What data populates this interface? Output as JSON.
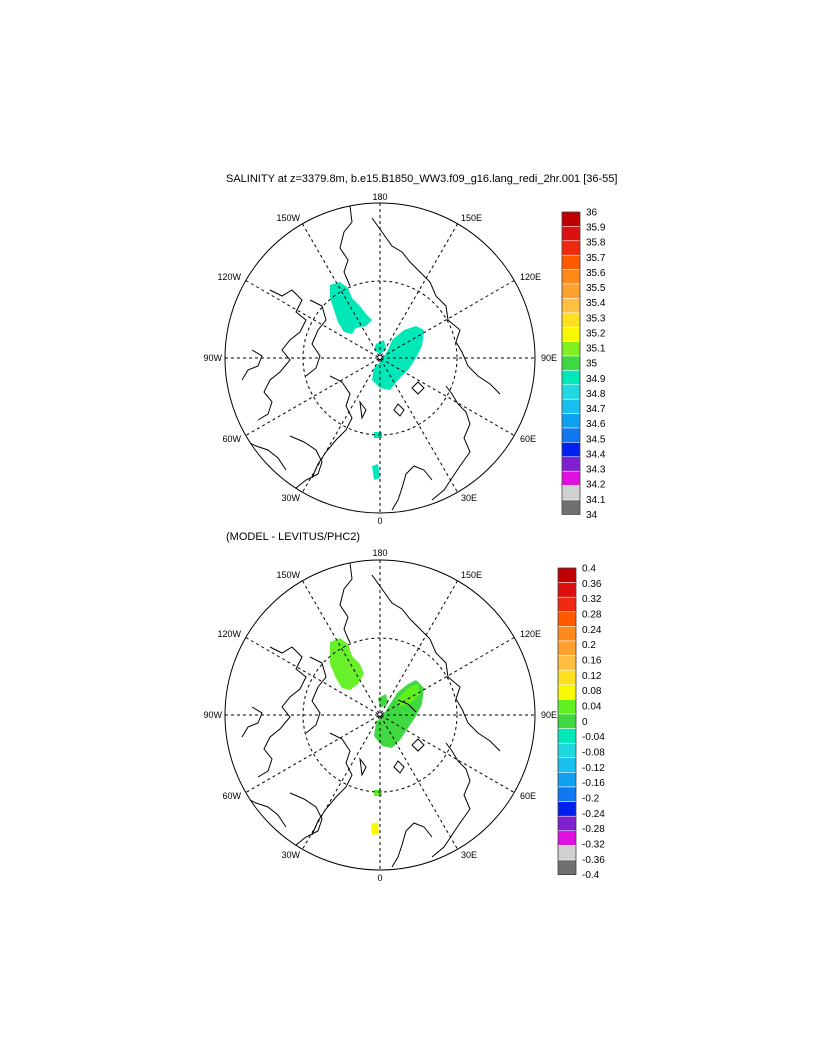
{
  "panel_top": {
    "title": "SALINITY at z=3379.8m, b.e15.B1850_WW3.f09_g16.lang_redi_2hr.001 [36-55]",
    "lon_labels": {
      "top": "180",
      "bottom": "0",
      "left": "90W",
      "right": "90E",
      "ul1": "150W",
      "ul2": "120W",
      "ll1": "60W",
      "ll2": "30W",
      "ur1": "150E",
      "ur2": "120E",
      "lr1": "60E",
      "lr2": "30E"
    },
    "colorbar": {
      "labels": [
        "36",
        "35.9",
        "35.8",
        "35.7",
        "35.6",
        "35.5",
        "35.4",
        "35.3",
        "35.2",
        "35.1",
        "35",
        "34.9",
        "34.8",
        "34.7",
        "34.6",
        "34.5",
        "34.4",
        "34.3",
        "34.2",
        "34.1",
        "34"
      ],
      "colors": [
        "#c00000",
        "#dd1010",
        "#f02a10",
        "#ff5a00",
        "#ff8a1a",
        "#ffa030",
        "#ffbf40",
        "#ffe020",
        "#f8f800",
        "#80f020",
        "#40d840",
        "#00e8b8",
        "#20d8e0",
        "#18c0f0",
        "#10a0f0",
        "#1078f0",
        "#0020f0",
        "#8020d0",
        "#e010e0",
        "#d0d0d0",
        "#707070"
      ]
    }
  },
  "panel_bottom": {
    "title": "(MODEL - LEVITUS/PHC2)",
    "lon_labels": {
      "top": "180",
      "bottom": "0",
      "left": "90W",
      "right": "90E",
      "ul1": "150W",
      "ul2": "120W",
      "ll1": "60W",
      "ll2": "30W",
      "ur1": "150E",
      "ur2": "120E",
      "lr1": "60E",
      "lr2": "30E"
    },
    "colorbar": {
      "labels": [
        "0.4",
        "0.36",
        "0.32",
        "0.28",
        "0.24",
        "0.2",
        "0.16",
        "0.12",
        "0.08",
        "0.04",
        "0",
        "-0.04",
        "-0.08",
        "-0.12",
        "-0.16",
        "-0.2",
        "-0.24",
        "-0.28",
        "-0.32",
        "-0.36",
        "-0.4"
      ],
      "colors": [
        "#c00000",
        "#dd1010",
        "#f02a10",
        "#ff5a00",
        "#ff8a1a",
        "#ffa030",
        "#ffbf40",
        "#ffe020",
        "#f8f800",
        "#60f020",
        "#40d840",
        "#00e8b8",
        "#20d8e0",
        "#18c0f0",
        "#10a0f0",
        "#1078f0",
        "#0020f0",
        "#8020d0",
        "#e010e0",
        "#d0d0d0",
        "#707070"
      ]
    }
  }
}
